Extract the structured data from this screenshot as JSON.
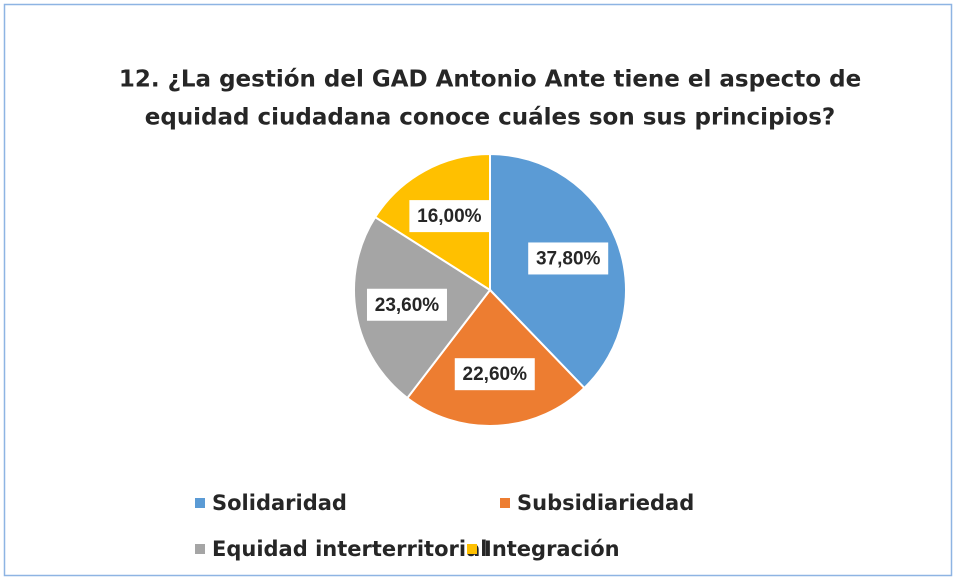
{
  "chart_data": {
    "type": "pie",
    "title": [
      "12. ¿La gestión del GAD Antonio Ante tiene el aspecto de",
      "equidad ciudadana conoce cuáles son sus principios?"
    ],
    "categories": [
      "Solidaridad",
      "Subsidiariedad",
      "Equidad interterritorial",
      "Integración"
    ],
    "values": [
      37.8,
      22.6,
      23.6,
      16.0
    ],
    "value_labels": [
      "37,80%",
      "22,60%",
      "23,60%",
      "16,00%"
    ],
    "colors": [
      "#5b9bd5",
      "#ed7d31",
      "#a5a5a5",
      "#ffc000"
    ],
    "legend": "bottom"
  }
}
